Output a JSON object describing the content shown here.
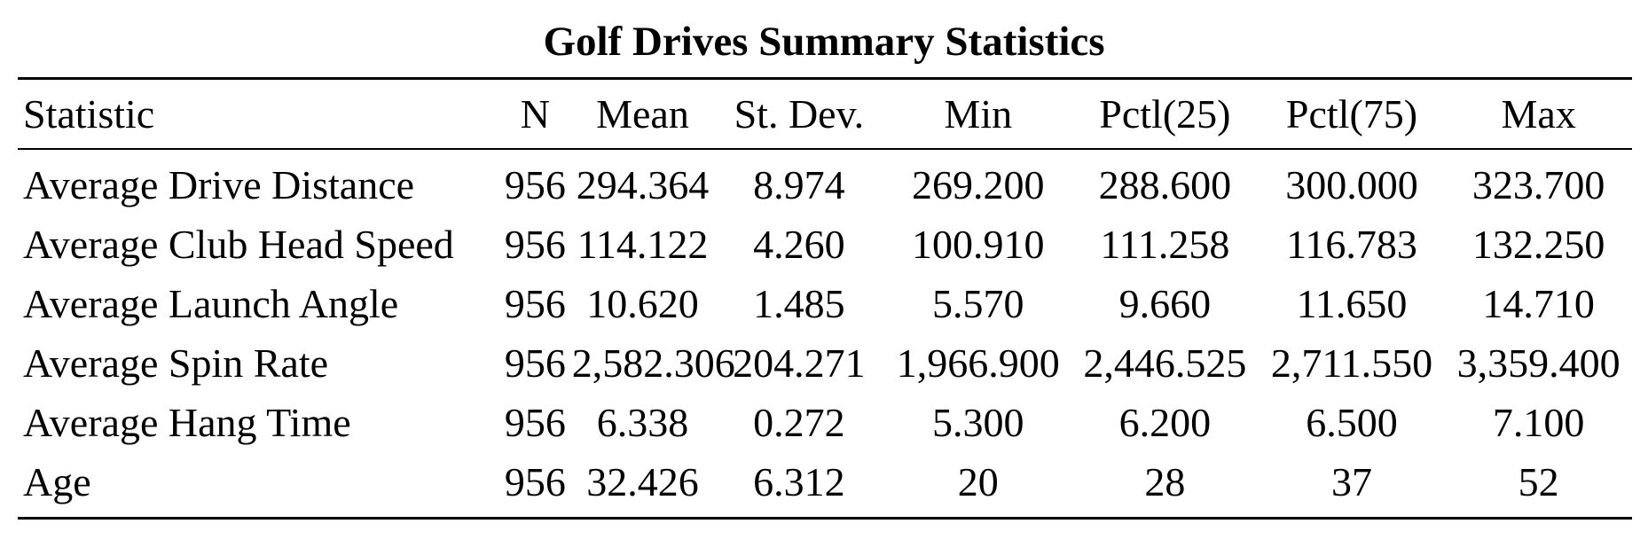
{
  "caption": "Golf Drives Summary Statistics",
  "table": {
    "headers": [
      "Statistic",
      "N",
      "Mean",
      "St. Dev.",
      "Min",
      "Pctl(25)",
      "Pctl(75)",
      "Max"
    ],
    "rows": [
      [
        "Average Drive Distance",
        "956",
        "294.364",
        "8.974",
        "269.200",
        "288.600",
        "300.000",
        "323.700"
      ],
      [
        "Average Club Head Speed",
        "956",
        "114.122",
        "4.260",
        "100.910",
        "111.258",
        "116.783",
        "132.250"
      ],
      [
        "Average Launch Angle",
        "956",
        "10.620",
        "1.485",
        "5.570",
        "9.660",
        "11.650",
        "14.710"
      ],
      [
        "Average Spin Rate",
        "956",
        "2,582.306",
        "204.271",
        "1,966.900",
        "2,446.525",
        "2,711.550",
        "3,359.400"
      ],
      [
        "Average Hang Time",
        "956",
        "6.338",
        "0.272",
        "5.300",
        "6.200",
        "6.500",
        "7.100"
      ],
      [
        "Age",
        "956",
        "32.426",
        "6.312",
        "20",
        "28",
        "37",
        "52"
      ]
    ]
  }
}
